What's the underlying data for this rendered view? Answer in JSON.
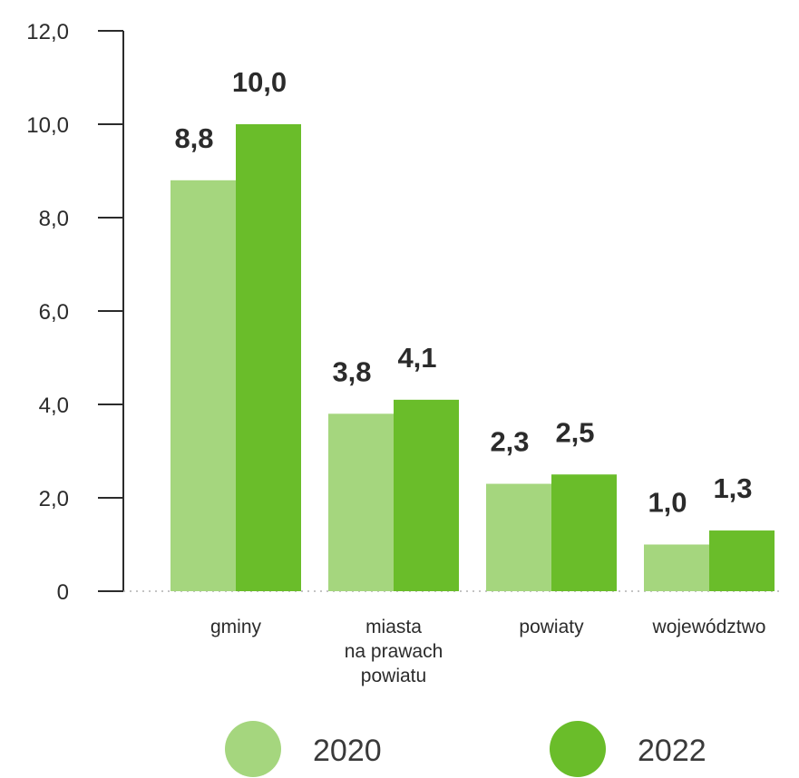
{
  "chart_data": {
    "type": "bar",
    "categories": [
      "gminy",
      "miasta\nna prawach\npowiatu",
      "powiaty",
      "województwo"
    ],
    "series": [
      {
        "name": "2020",
        "values": [
          8.8,
          3.8,
          2.3,
          1.0
        ],
        "labels": [
          "8,8",
          "3,8",
          "2,3",
          "1,0"
        ],
        "color": "#a5d67e"
      },
      {
        "name": "2022",
        "values": [
          10.0,
          4.1,
          2.5,
          1.3
        ],
        "labels": [
          "10,0",
          "4,1",
          "2,5",
          "1,3"
        ],
        "color": "#6abd2a"
      }
    ],
    "yticks": [
      0,
      2,
      4,
      6,
      8,
      10,
      12
    ],
    "ytick_labels": [
      "0",
      "2,0",
      "4,0",
      "6,0",
      "8,0",
      "10,0",
      "12,0"
    ],
    "ylim": [
      0,
      12
    ],
    "grid": false,
    "legend_position": "bottom",
    "axis_color": "#2b2b2b",
    "baseline_color": "#b0b0b0"
  }
}
